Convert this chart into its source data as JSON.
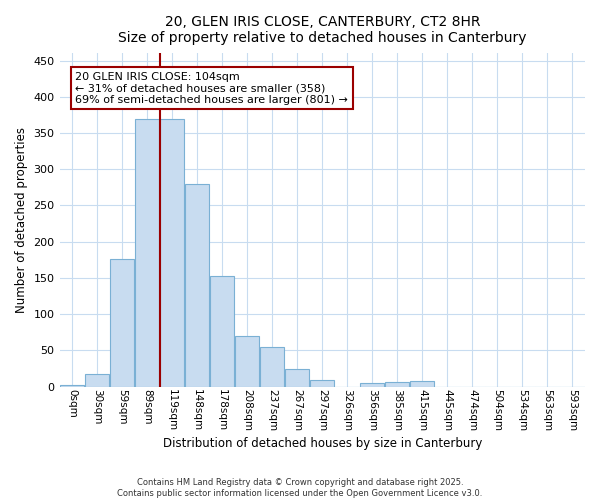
{
  "title1": "20, GLEN IRIS CLOSE, CANTERBURY, CT2 8HR",
  "title2": "Size of property relative to detached houses in Canterbury",
  "xlabel": "Distribution of detached houses by size in Canterbury",
  "ylabel": "Number of detached properties",
  "bar_labels": [
    "0sqm",
    "30sqm",
    "59sqm",
    "89sqm",
    "119sqm",
    "148sqm",
    "178sqm",
    "208sqm",
    "237sqm",
    "267sqm",
    "297sqm",
    "326sqm",
    "356sqm",
    "385sqm",
    "415sqm",
    "445sqm",
    "474sqm",
    "504sqm",
    "534sqm",
    "563sqm",
    "593sqm"
  ],
  "bar_values": [
    2,
    17,
    176,
    370,
    370,
    280,
    153,
    70,
    55,
    24,
    9,
    0,
    5,
    6,
    7,
    0,
    0,
    0,
    0,
    0,
    0
  ],
  "bar_color": "#c8dcf0",
  "bar_edgecolor": "#7ab0d4",
  "vline_x": 3.5,
  "vline_color": "#9b0000",
  "annotation_text": "20 GLEN IRIS CLOSE: 104sqm\n← 31% of detached houses are smaller (358)\n69% of semi-detached houses are larger (801) →",
  "annotation_box_facecolor": "#ffffff",
  "annotation_box_edgecolor": "#9b0000",
  "ylim": [
    0,
    460
  ],
  "yticks": [
    0,
    50,
    100,
    150,
    200,
    250,
    300,
    350,
    400,
    450
  ],
  "background_color": "#ffffff",
  "grid_color": "#c8dcf0",
  "footer1": "Contains HM Land Registry data © Crown copyright and database right 2025.",
  "footer2": "Contains public sector information licensed under the Open Government Licence v3.0."
}
